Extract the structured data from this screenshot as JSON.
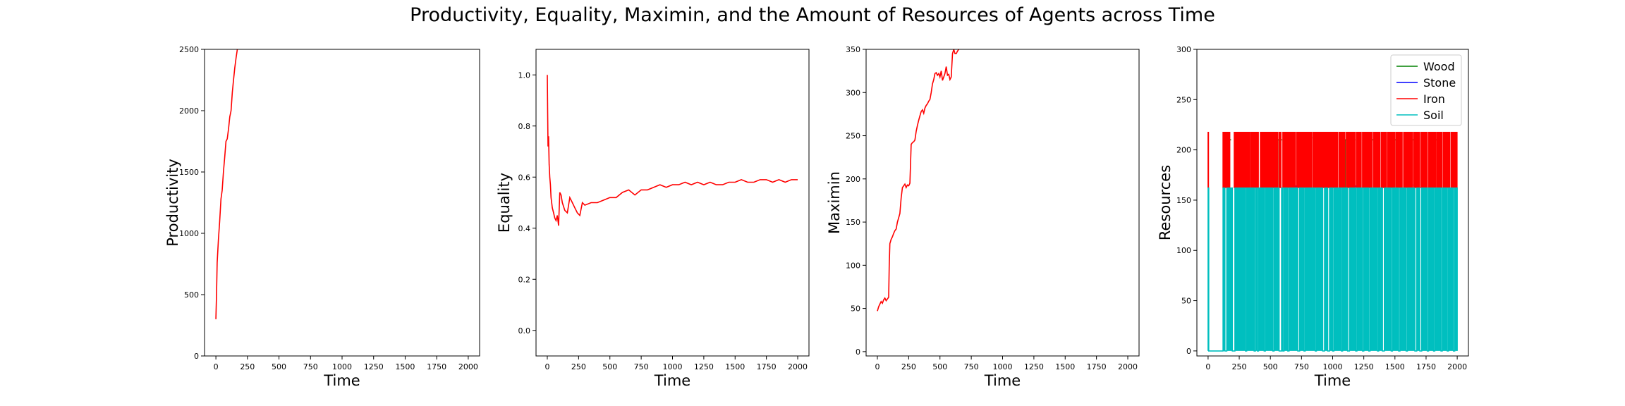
{
  "title": "Productivity, Equality, Maximin, and the Amount of Resources of Agents across Time",
  "chart_data": [
    {
      "type": "line",
      "xlabel": "Time",
      "ylabel": "Productivity",
      "xlim": [
        -90,
        2090
      ],
      "ylim": [
        0,
        2500
      ],
      "xticks": [
        0,
        250,
        500,
        750,
        1000,
        1250,
        1500,
        1750,
        2000
      ],
      "yticks": [
        0,
        500,
        1000,
        1500,
        2000,
        2500
      ],
      "series": [
        {
          "color": "#ff0000",
          "x": [
            0,
            5,
            10,
            20,
            30,
            40,
            50,
            60,
            70,
            80,
            90,
            100,
            110,
            120,
            130,
            140,
            150,
            160,
            170,
            180
          ],
          "y": [
            300,
            500,
            760,
            950,
            1100,
            1280,
            1350,
            1500,
            1620,
            1750,
            1770,
            1850,
            1950,
            2000,
            2150,
            2250,
            2350,
            2430,
            2500,
            2560
          ]
        }
      ]
    },
    {
      "type": "line",
      "xlabel": "Time",
      "ylabel": "Equality",
      "xlim": [
        -90,
        2090
      ],
      "ylim": [
        -0.1,
        1.1
      ],
      "xticks": [
        0,
        250,
        500,
        750,
        1000,
        1250,
        1500,
        1750,
        2000
      ],
      "yticks": [
        0.0,
        0.2,
        0.4,
        0.6,
        0.8,
        1.0
      ],
      "series": [
        {
          "color": "#ff0000",
          "x": [
            0,
            3,
            6,
            10,
            15,
            20,
            25,
            30,
            40,
            50,
            60,
            70,
            80,
            90,
            100,
            110,
            120,
            140,
            160,
            180,
            200,
            220,
            240,
            260,
            280,
            300,
            350,
            400,
            450,
            500,
            550,
            600,
            650,
            700,
            750,
            800,
            850,
            900,
            950,
            1000,
            1050,
            1100,
            1150,
            1200,
            1250,
            1300,
            1350,
            1400,
            1450,
            1500,
            1550,
            1600,
            1650,
            1700,
            1750,
            1800,
            1850,
            1900,
            1950,
            2000
          ],
          "y": [
            1.0,
            0.85,
            0.72,
            0.76,
            0.65,
            0.6,
            0.57,
            0.52,
            0.48,
            0.46,
            0.44,
            0.43,
            0.45,
            0.41,
            0.54,
            0.53,
            0.5,
            0.47,
            0.46,
            0.52,
            0.5,
            0.48,
            0.46,
            0.45,
            0.5,
            0.49,
            0.5,
            0.5,
            0.51,
            0.52,
            0.52,
            0.54,
            0.55,
            0.53,
            0.55,
            0.55,
            0.56,
            0.57,
            0.56,
            0.57,
            0.57,
            0.58,
            0.57,
            0.58,
            0.57,
            0.58,
            0.57,
            0.57,
            0.58,
            0.58,
            0.59,
            0.58,
            0.58,
            0.59,
            0.59,
            0.58,
            0.59,
            0.58,
            0.59,
            0.59
          ]
        }
      ]
    },
    {
      "type": "line",
      "xlabel": "Time",
      "ylabel": "Maximin",
      "xlim": [
        -90,
        2090
      ],
      "ylim": [
        -5,
        350
      ],
      "xticks": [
        0,
        250,
        500,
        750,
        1000,
        1250,
        1500,
        1750,
        2000
      ],
      "yticks": [
        0,
        50,
        100,
        150,
        200,
        250,
        300,
        350
      ],
      "series": [
        {
          "color": "#ff0000",
          "x": [
            0,
            10,
            20,
            30,
            40,
            50,
            60,
            70,
            80,
            90,
            95,
            100,
            110,
            120,
            130,
            140,
            150,
            160,
            170,
            180,
            190,
            200,
            210,
            220,
            230,
            240,
            250,
            260,
            270,
            280,
            290,
            300,
            310,
            320,
            330,
            340,
            350,
            360,
            370,
            380,
            390,
            400,
            410,
            420,
            430,
            440,
            450,
            460,
            470,
            480,
            490,
            500,
            510,
            520,
            530,
            540,
            550,
            560,
            570,
            580,
            590,
            600,
            610,
            620,
            630,
            640,
            650,
            660
          ],
          "y": [
            47,
            52,
            55,
            58,
            56,
            60,
            62,
            59,
            61,
            63,
            100,
            125,
            130,
            133,
            137,
            140,
            142,
            150,
            155,
            160,
            178,
            190,
            192,
            194,
            190,
            193,
            192,
            195,
            240,
            242,
            243,
            245,
            255,
            262,
            268,
            273,
            278,
            280,
            276,
            282,
            285,
            287,
            290,
            292,
            300,
            310,
            315,
            322,
            323,
            320,
            322,
            318,
            325,
            314,
            318,
            322,
            330,
            320,
            321,
            315,
            318,
            345,
            350,
            345,
            345,
            348,
            350,
            352
          ]
        }
      ]
    },
    {
      "type": "line",
      "xlabel": "Time",
      "ylabel": "Resources",
      "xlim": [
        -90,
        2090
      ],
      "ylim": [
        -5,
        300
      ],
      "xticks": [
        0,
        250,
        500,
        750,
        1000,
        1250,
        1500,
        1750,
        2000
      ],
      "yticks": [
        0,
        50,
        100,
        150,
        200,
        250,
        300
      ],
      "legend": {
        "loc": "upper right",
        "entries": [
          "Wood",
          "Stone",
          "Iron",
          "Soil"
        ]
      },
      "series": [
        {
          "name": "Wood",
          "color": "#008000",
          "segments": [
            [
              150,
              210
            ],
            [
              360,
              210
            ],
            [
              470,
              210
            ],
            [
              520,
              213
            ],
            [
              560,
              210
            ],
            [
              640,
              210
            ],
            [
              800,
              212
            ],
            [
              950,
              210
            ],
            [
              1100,
              210
            ],
            [
              1150,
              210
            ],
            [
              1300,
              210
            ],
            [
              1500,
              210
            ],
            [
              1650,
              210
            ],
            [
              1820,
              210
            ]
          ]
        },
        {
          "name": "Stone",
          "color": "#0000ff",
          "segments": [
            [
              530,
              165
            ],
            [
              700,
              164
            ],
            [
              1180,
              164
            ],
            [
              1610,
              165
            ],
            [
              1900,
              164
            ]
          ]
        },
        {
          "name": "Iron",
          "color": "#ff0000",
          "low": 162,
          "high": 218,
          "bursts": [
            [
              0,
              5
            ],
            [
              120,
              160
            ],
            [
              165,
              175
            ],
            [
              210,
              330
            ],
            [
              340,
              405
            ],
            [
              420,
              470
            ],
            [
              475,
              560
            ],
            [
              570,
              585
            ],
            [
              600,
              640
            ],
            [
              645,
              700
            ],
            [
              710,
              740
            ],
            [
              745,
              800
            ],
            [
              805,
              830
            ],
            [
              840,
              920
            ],
            [
              925,
              1000
            ],
            [
              1005,
              1040
            ],
            [
              1050,
              1100
            ],
            [
              1110,
              1180
            ],
            [
              1190,
              1230
            ],
            [
              1240,
              1320
            ],
            [
              1330,
              1380
            ],
            [
              1390,
              1430
            ],
            [
              1440,
              1500
            ],
            [
              1510,
              1560
            ],
            [
              1570,
              1640
            ],
            [
              1650,
              1700
            ],
            [
              1710,
              1760
            ],
            [
              1770,
              1830
            ],
            [
              1840,
              1880
            ],
            [
              1890,
              1940
            ],
            [
              1950,
              2000
            ]
          ]
        },
        {
          "name": "Soil",
          "color": "#00bfbf",
          "base": 0,
          "plateau": 162,
          "up": [
            [
              0,
              5
            ],
            [
              120,
              135
            ],
            [
              150,
              195
            ],
            [
              215,
              300
            ],
            [
              310,
              370
            ],
            [
              380,
              395
            ],
            [
              405,
              450
            ],
            [
              460,
              520
            ],
            [
              530,
              570
            ],
            [
              590,
              600
            ],
            [
              610,
              640
            ],
            [
              650,
              720
            ],
            [
              735,
              770
            ],
            [
              780,
              860
            ],
            [
              870,
              920
            ],
            [
              935,
              960
            ],
            [
              975,
              1000
            ],
            [
              1010,
              1070
            ],
            [
              1080,
              1120
            ],
            [
              1135,
              1185
            ],
            [
              1195,
              1240
            ],
            [
              1250,
              1290
            ],
            [
              1300,
              1360
            ],
            [
              1370,
              1400
            ],
            [
              1415,
              1470
            ],
            [
              1480,
              1530
            ],
            [
              1540,
              1590
            ],
            [
              1600,
              1660
            ],
            [
              1675,
              1700
            ],
            [
              1715,
              1760
            ],
            [
              1770,
              1810
            ],
            [
              1820,
              1870
            ],
            [
              1880,
              1920
            ],
            [
              1930,
              1970
            ],
            [
              1980,
              2000
            ]
          ]
        }
      ]
    }
  ]
}
